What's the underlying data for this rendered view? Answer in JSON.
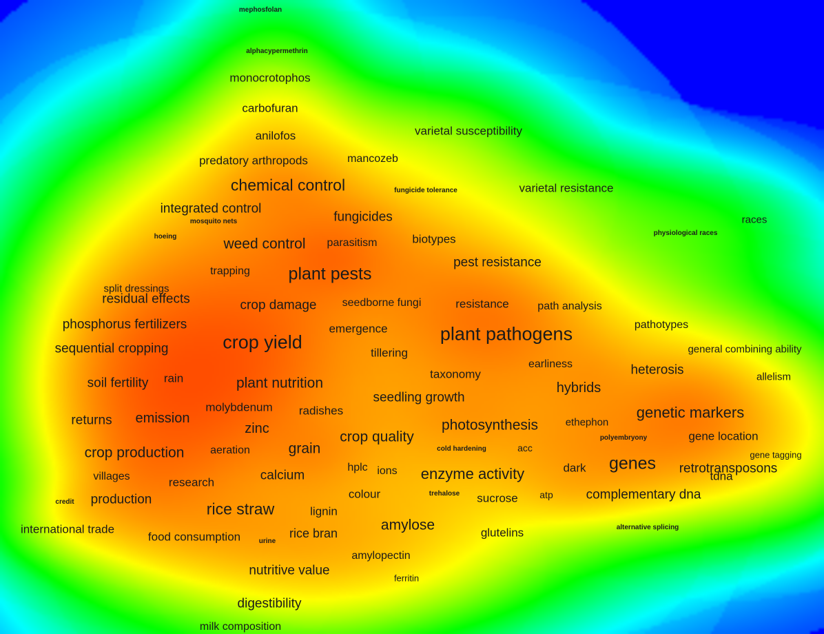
{
  "terms": [
    "mephosfolan",
    "alphacypermethrin",
    "monocrotophos",
    "carbofuran",
    "anilofos",
    "varietal susceptibility",
    "predatory arthropods",
    "mancozeb",
    "chemical control",
    "fungicide tolerance",
    "varietal resistance",
    "integrated control",
    "mosquito nets",
    "fungicides",
    "races",
    "physiological races",
    "hoeing",
    "weed control",
    "parasitism",
    "biotypes",
    "pest resistance",
    "trapping",
    "plant pests",
    "split dressings",
    "residual effects",
    "crop damage",
    "seedborne fungi",
    "resistance",
    "path analysis",
    "phosphorus fertilizers",
    "emergence",
    "plant pathogens",
    "pathotypes",
    "crop yield",
    "sequential cropping",
    "tillering",
    "general combining ability",
    "earliness",
    "heterosis",
    "taxonomy",
    "allelism",
    "soil fertility",
    "rain",
    "plant nutrition",
    "hybrids",
    "seedling growth",
    "molybdenum",
    "radishes",
    "genetic markers",
    "returns",
    "emission",
    "photosynthesis",
    "ethephon",
    "zinc",
    "gene location",
    "crop quality",
    "polyembryony",
    "crop production",
    "aeration",
    "grain",
    "cold hardening",
    "acc",
    "gene tagging",
    "genes",
    "hplc",
    "ions",
    "enzyme activity",
    "dark",
    "retrotransposons",
    "tdna",
    "villages",
    "calcium",
    "research",
    "colour",
    "trehalose",
    "sucrose",
    "atp",
    "complementary dna",
    "credit",
    "production",
    "rice straw",
    "lignin",
    "amylose",
    "international trade",
    "food consumption",
    "urine",
    "rice bran",
    "glutelins",
    "alternative splicing",
    "amylopectin",
    "nutritive value",
    "ferritin",
    "digestibility",
    "milk composition"
  ],
  "colors": {
    "background": "#0000ff",
    "label_text": "#1a1a1a",
    "density_scale": [
      "#0000ff",
      "#00ffff",
      "#00ff00",
      "#ffff00",
      "#ff0000"
    ]
  }
}
